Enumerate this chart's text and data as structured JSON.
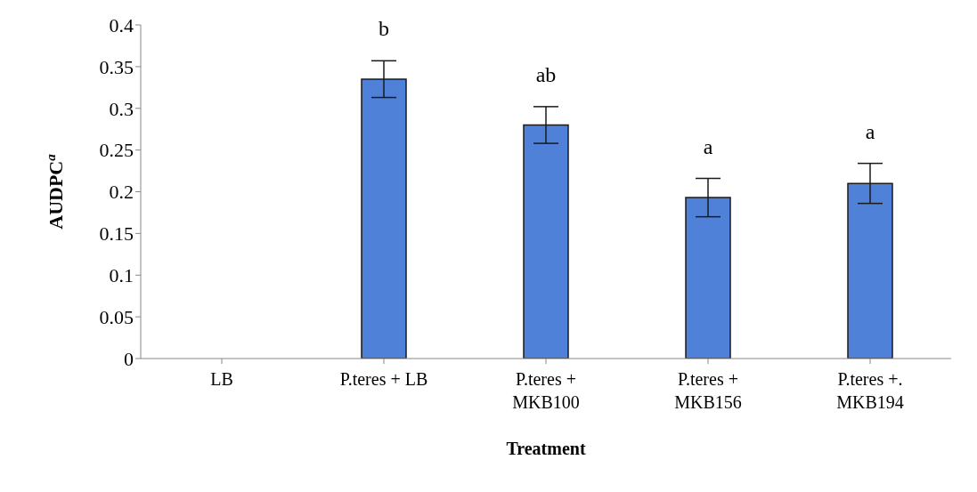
{
  "chart_data": {
    "type": "bar",
    "xlabel": "Treatment",
    "ylabel": "AUDPC$^{a}$",
    "categories": [
      "LB",
      "P.teres + LB",
      "P.teres +\nMKB100",
      "P.teres +\nMKB156",
      "P.teres +.\nMKB194"
    ],
    "values": [
      0,
      0.335,
      0.28,
      0.193,
      0.21
    ],
    "errors": [
      null,
      0.022,
      0.022,
      0.023,
      0.024
    ],
    "color": "#4f81d9",
    "ylim": [
      0,
      0.4
    ],
    "yticks": [
      0,
      0.05,
      0.1,
      0.15,
      0.2,
      0.25,
      0.3,
      0.35,
      0.4
    ],
    "grid": false,
    "legend": false,
    "annotations": [
      "b",
      "ab",
      "a",
      "a"
    ]
  }
}
